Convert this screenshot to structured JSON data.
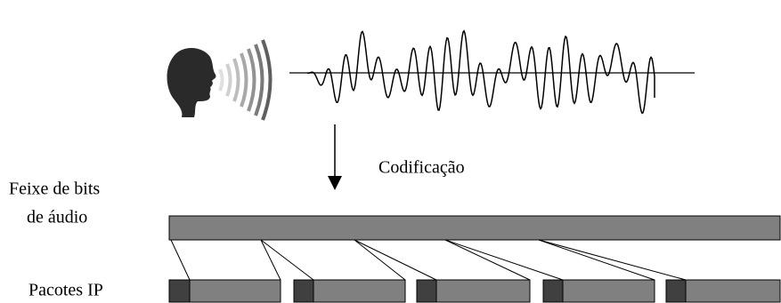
{
  "encoding_label": "Codificação",
  "bitstream_label": [
    "Feixe de bits",
    "de áudio"
  ],
  "packets_label": "Pacotes IP"
}
